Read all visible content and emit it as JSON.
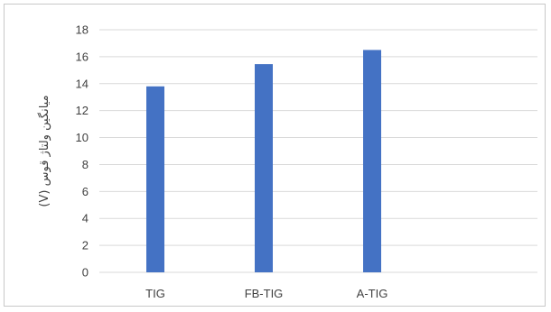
{
  "chart_data": {
    "type": "bar",
    "categories": [
      "TIG",
      "FB-TIG",
      "A-TIG"
    ],
    "values": [
      13.8,
      15.45,
      16.5
    ],
    "ylabel": "میانگین ولتاژ قوس (V)",
    "xlabel": "",
    "ylim": [
      0,
      18
    ],
    "ytick_step": 2,
    "grid": "horizontal",
    "legend": "none",
    "colors": {
      "bar": "#4472C4",
      "grid": "#d9d9d9",
      "text": "#404040",
      "frame": "#c8c8c8"
    }
  }
}
